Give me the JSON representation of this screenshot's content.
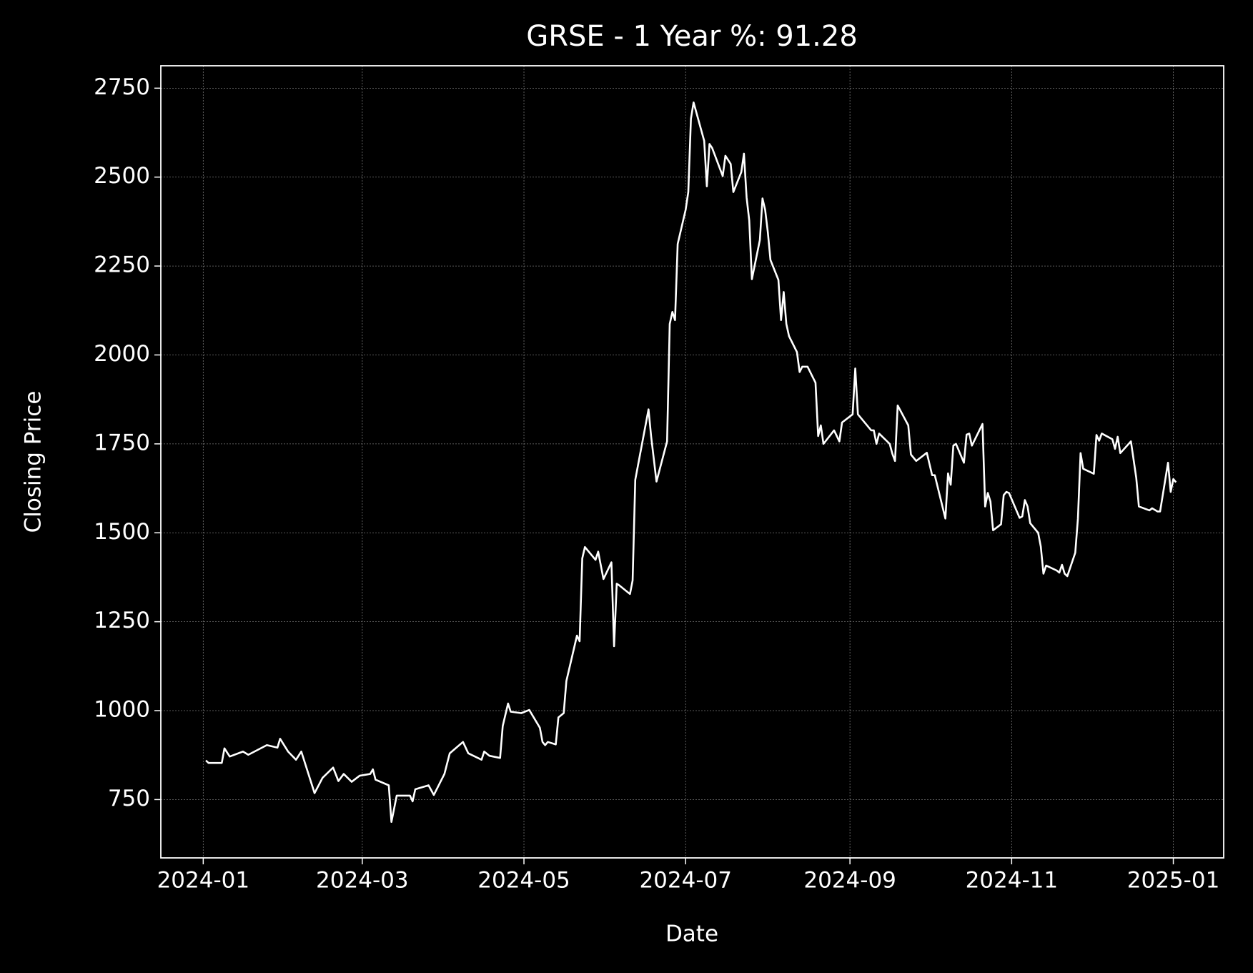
{
  "chart_data": {
    "type": "line",
    "title": "GRSE - 1 Year %: 91.28",
    "xlabel": "Date",
    "ylabel": "Closing Price",
    "color": "#ffffff",
    "grid": true,
    "xlim": [
      "2023-12-16",
      "2025-01-20"
    ],
    "ylim": [
      586,
      2813
    ],
    "xticks": [
      {
        "value": "2024-01-01",
        "label": "2024-01"
      },
      {
        "value": "2024-03-01",
        "label": "2024-03"
      },
      {
        "value": "2024-05-01",
        "label": "2024-05"
      },
      {
        "value": "2024-07-01",
        "label": "2024-07"
      },
      {
        "value": "2024-09-01",
        "label": "2024-09"
      },
      {
        "value": "2024-11-01",
        "label": "2024-11"
      },
      {
        "value": "2025-01-01",
        "label": "2025-01"
      }
    ],
    "yticks": [
      750,
      1000,
      1250,
      1500,
      1750,
      2000,
      2250,
      2500,
      2750
    ],
    "x": [
      "2024-01-02",
      "2024-01-03",
      "2024-01-08",
      "2024-01-09",
      "2024-01-11",
      "2024-01-16",
      "2024-01-18",
      "2024-01-25",
      "2024-01-29",
      "2024-01-30",
      "2024-02-02",
      "2024-02-05",
      "2024-02-07",
      "2024-02-12",
      "2024-02-15",
      "2024-02-19",
      "2024-02-21",
      "2024-02-23",
      "2024-02-26",
      "2024-02-29",
      "2024-03-04",
      "2024-03-05",
      "2024-03-06",
      "2024-03-11",
      "2024-03-12",
      "2024-03-14",
      "2024-03-19",
      "2024-03-20",
      "2024-03-21",
      "2024-03-26",
      "2024-03-28",
      "2024-04-01",
      "2024-04-03",
      "2024-04-08",
      "2024-04-10",
      "2024-04-15",
      "2024-04-16",
      "2024-04-18",
      "2024-04-22",
      "2024-04-23",
      "2024-04-25",
      "2024-04-26",
      "2024-04-30",
      "2024-05-03",
      "2024-05-07",
      "2024-05-08",
      "2024-05-09",
      "2024-05-10",
      "2024-05-13",
      "2024-05-14",
      "2024-05-16",
      "2024-05-17",
      "2024-05-21",
      "2024-05-22",
      "2024-05-23",
      "2024-05-24",
      "2024-05-28",
      "2024-05-29",
      "2024-05-31",
      "2024-06-03",
      "2024-06-04",
      "2024-06-05",
      "2024-06-06",
      "2024-06-10",
      "2024-06-11",
      "2024-06-12",
      "2024-06-17",
      "2024-06-18",
      "2024-06-20",
      "2024-06-24",
      "2024-06-25",
      "2024-06-26",
      "2024-06-27",
      "2024-06-28",
      "2024-07-01",
      "2024-07-02",
      "2024-07-03",
      "2024-07-04",
      "2024-07-08",
      "2024-07-09",
      "2024-07-10",
      "2024-07-11",
      "2024-07-15",
      "2024-07-16",
      "2024-07-18",
      "2024-07-19",
      "2024-07-22",
      "2024-07-23",
      "2024-07-24",
      "2024-07-25",
      "2024-07-26",
      "2024-07-29",
      "2024-07-30",
      "2024-07-31",
      "2024-08-01",
      "2024-08-02",
      "2024-08-05",
      "2024-08-06",
      "2024-08-07",
      "2024-08-08",
      "2024-08-09",
      "2024-08-12",
      "2024-08-13",
      "2024-08-14",
      "2024-08-16",
      "2024-08-19",
      "2024-08-20",
      "2024-08-21",
      "2024-08-22",
      "2024-08-26",
      "2024-08-28",
      "2024-08-29",
      "2024-09-02",
      "2024-09-03",
      "2024-09-04",
      "2024-09-09",
      "2024-09-10",
      "2024-09-11",
      "2024-09-12",
      "2024-09-16",
      "2024-09-17",
      "2024-09-18",
      "2024-09-19",
      "2024-09-23",
      "2024-09-24",
      "2024-09-26",
      "2024-09-30",
      "2024-10-02",
      "2024-10-03",
      "2024-10-07",
      "2024-10-08",
      "2024-10-09",
      "2024-10-10",
      "2024-10-11",
      "2024-10-14",
      "2024-10-15",
      "2024-10-16",
      "2024-10-17",
      "2024-10-21",
      "2024-10-22",
      "2024-10-23",
      "2024-10-24",
      "2024-10-25",
      "2024-10-28",
      "2024-10-29",
      "2024-10-30",
      "2024-10-31",
      "2024-11-04",
      "2024-11-05",
      "2024-11-06",
      "2024-11-07",
      "2024-11-08",
      "2024-11-11",
      "2024-11-12",
      "2024-11-13",
      "2024-11-14",
      "2024-11-18",
      "2024-11-19",
      "2024-11-20",
      "2024-11-21",
      "2024-11-22",
      "2024-11-25",
      "2024-11-26",
      "2024-11-27",
      "2024-11-28",
      "2024-12-02",
      "2024-12-03",
      "2024-12-04",
      "2024-12-05",
      "2024-12-09",
      "2024-12-10",
      "2024-12-11",
      "2024-12-12",
      "2024-12-16",
      "2024-12-18",
      "2024-12-19",
      "2024-12-23",
      "2024-12-24",
      "2024-12-26",
      "2024-12-27",
      "2024-12-30",
      "2024-12-31",
      "2025-01-01",
      "2025-01-02"
    ],
    "values": [
      860,
      853,
      853,
      894,
      871,
      885,
      876,
      903,
      896,
      921,
      885,
      862,
      885,
      768,
      811,
      840,
      802,
      822,
      800,
      817,
      822,
      835,
      806,
      790,
      687,
      761,
      761,
      745,
      779,
      790,
      763,
      822,
      880,
      912,
      880,
      862,
      885,
      873,
      867,
      957,
      1020,
      997,
      993,
      1002,
      952,
      912,
      903,
      912,
      905,
      981,
      993,
      1083,
      1211,
      1195,
      1428,
      1460,
      1424,
      1447,
      1370,
      1417,
      1181,
      1357,
      1352,
      1328,
      1366,
      1649,
      1847,
      1770,
      1644,
      1757,
      2087,
      2121,
      2098,
      2312,
      2408,
      2458,
      2664,
      2710,
      2602,
      2474,
      2593,
      2582,
      2503,
      2560,
      2537,
      2458,
      2514,
      2566,
      2443,
      2378,
      2213,
      2323,
      2440,
      2408,
      2346,
      2267,
      2211,
      2098,
      2177,
      2087,
      2053,
      2008,
      1952,
      1967,
      1967,
      1922,
      1772,
      1802,
      1750,
      1788,
      1757,
      1810,
      1833,
      1962,
      1833,
      1788,
      1788,
      1750,
      1779,
      1750,
      1722,
      1702,
      1858,
      1802,
      1720,
      1702,
      1725,
      1662,
      1662,
      1540,
      1667,
      1635,
      1745,
      1750,
      1697,
      1776,
      1779,
      1745,
      1806,
      1574,
      1612,
      1588,
      1507,
      1524,
      1606,
      1615,
      1612,
      1542,
      1546,
      1592,
      1574,
      1527,
      1500,
      1461,
      1385,
      1408,
      1394,
      1388,
      1410,
      1385,
      1378,
      1444,
      1540,
      1724,
      1680,
      1666,
      1775,
      1759,
      1779,
      1763,
      1736,
      1770,
      1724,
      1757,
      1655,
      1574,
      1563,
      1569,
      1560,
      1560,
      1697,
      1615,
      1651,
      1642
    ]
  }
}
